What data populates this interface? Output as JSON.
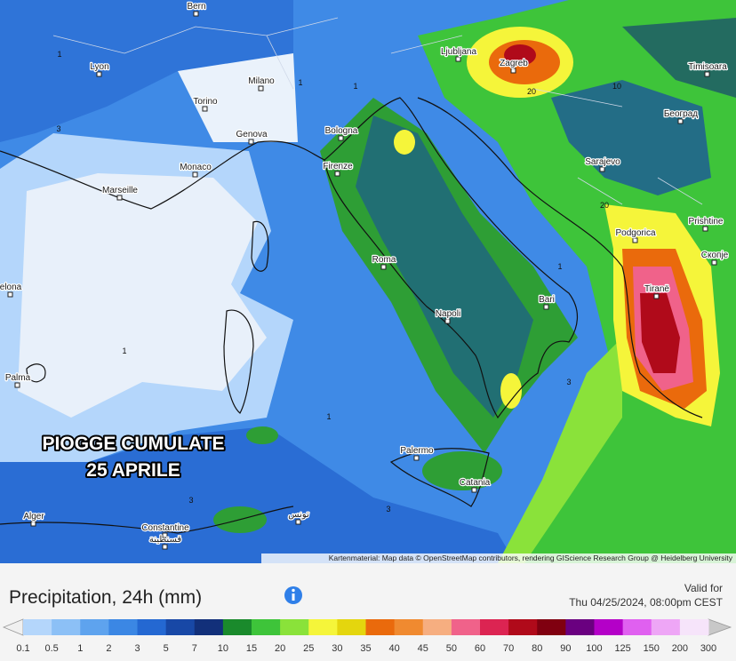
{
  "map": {
    "overlay_title": [
      "PIOGGE CUMULATE",
      "25 APRILE"
    ],
    "cities": [
      "Bern",
      "Lyon",
      "Torino",
      "Milano",
      "Genova",
      "Monaco",
      "Marseille",
      "Bologna",
      "Firenze",
      "Ljubljana",
      "Zagreb",
      "Timisoara",
      "Београд",
      "Sarajevo",
      "Podgorica",
      "Prishtine",
      "Скопје",
      "Tiranë",
      "Roma",
      "Bari",
      "Napoli",
      "Palermo",
      "Catania",
      "elona",
      "Palma",
      "Alger",
      "Constantine",
      "قسنطينة",
      "تونس"
    ],
    "contour_labels": [
      "1",
      "1",
      "1",
      "3",
      "10",
      "20",
      "1",
      "1",
      "3",
      "3",
      "1",
      "20",
      "3"
    ],
    "attribution": "Kartenmaterial: Map data © OpenStreetMap contributors, rendering GIScience Research Group @ Heidelberg University"
  },
  "legend": {
    "title": "Precipitation, 24h (mm)",
    "valid_label": "Valid for",
    "valid_time": "Thu 04/25/2024, 08:00pm CEST",
    "labels": [
      "0.1",
      "0.5",
      "1",
      "2",
      "3",
      "5",
      "7",
      "10",
      "15",
      "20",
      "25",
      "30",
      "35",
      "40",
      "45",
      "50",
      "60",
      "70",
      "80",
      "90",
      "100",
      "125",
      "150",
      "200",
      "300"
    ],
    "colors": [
      "#b4d6fb",
      "#8cc0f6",
      "#5ea3ee",
      "#3b87e4",
      "#2468d2",
      "#1848a6",
      "#12307a",
      "#1a8a2c",
      "#3ec43a",
      "#8ae23a",
      "#f5f53a",
      "#e4d60e",
      "#ea6a0c",
      "#f08a30",
      "#f6ae80",
      "#f0628a",
      "#dc2452",
      "#b00a1a",
      "#800010",
      "#6a0080",
      "#b400c8",
      "#e060f0",
      "#eea6f6",
      "#f6e4fa"
    ],
    "under_color": "#f0f0f0",
    "over_color": "#c8c8c8"
  }
}
